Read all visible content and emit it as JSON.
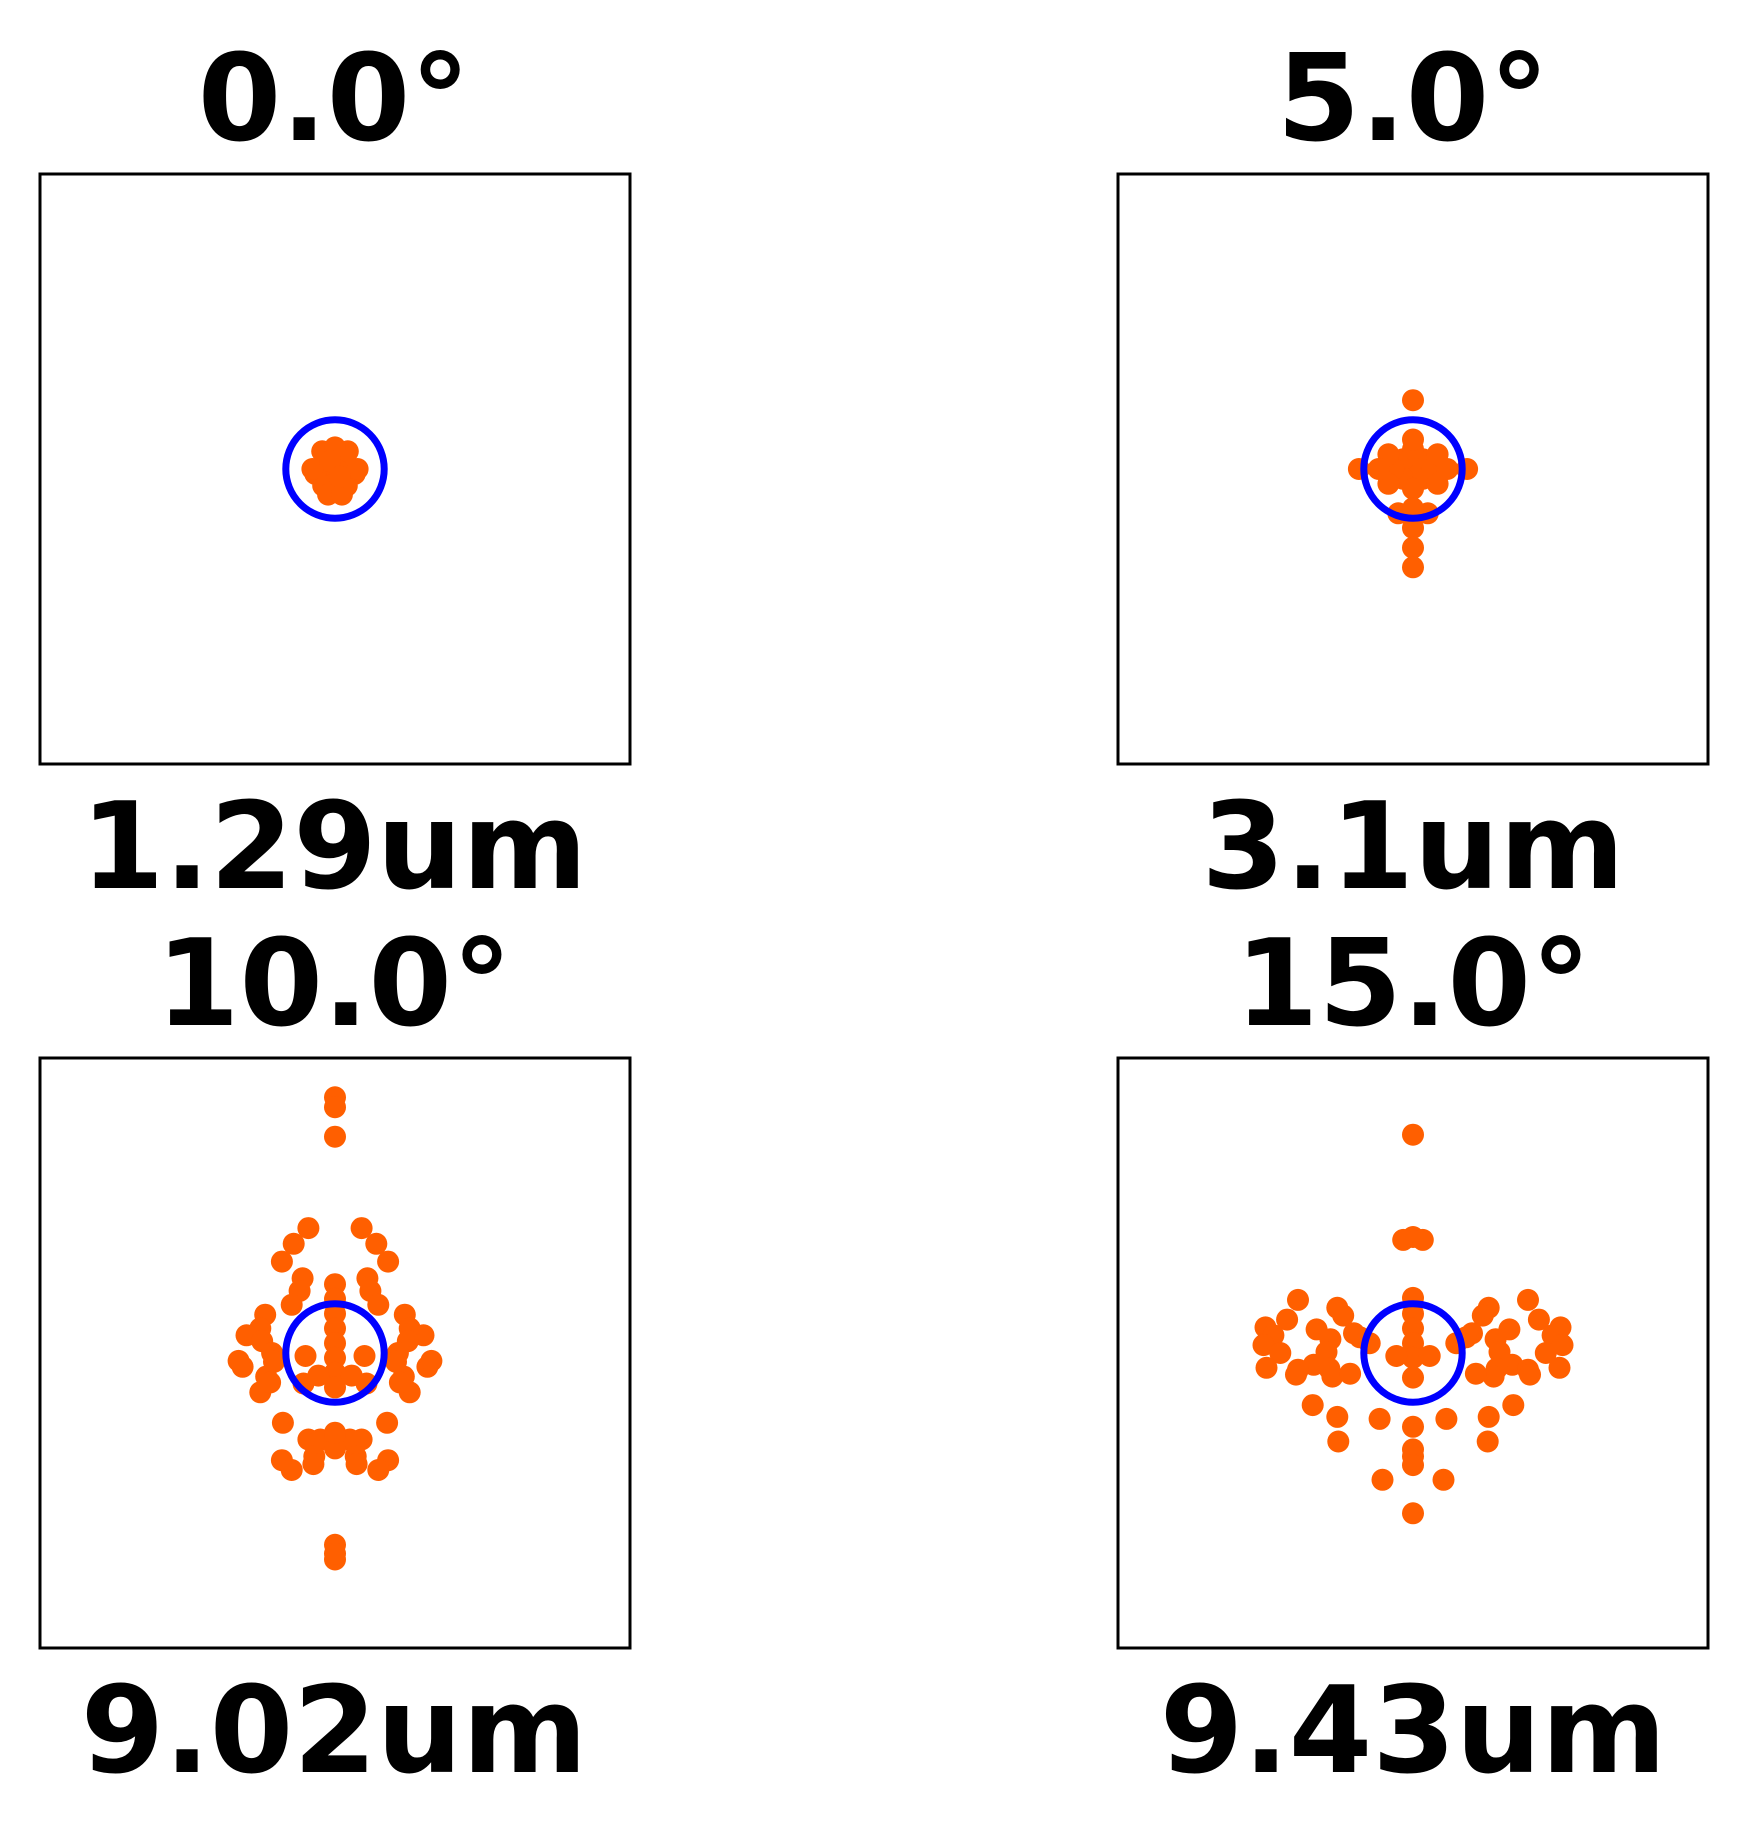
{
  "chart_data": [
    {
      "type": "scatter",
      "title": "0.0°",
      "rms_label": "1.29um",
      "xlim": [
        -30,
        30
      ],
      "ylim": [
        -30,
        30
      ],
      "airy_radius": 5,
      "marker_color": "#FF5F00",
      "circle_color": "#0000FF",
      "points": [
        [
          0,
          0
        ],
        [
          -1.2,
          0.4
        ],
        [
          1.2,
          0.4
        ],
        [
          0,
          1.5
        ],
        [
          0,
          -1.5
        ],
        [
          -2,
          -0.5
        ],
        [
          2,
          -0.5
        ],
        [
          -1.3,
          1.8
        ],
        [
          1.3,
          1.8
        ],
        [
          -1.2,
          -1.7
        ],
        [
          1.2,
          -1.7
        ],
        [
          -2.3,
          0
        ],
        [
          2.3,
          0
        ],
        [
          0,
          2.2
        ],
        [
          0,
          -2.2
        ],
        [
          -0.7,
          -2.6
        ],
        [
          0.7,
          -2.6
        ],
        [
          -0.5,
          0.8
        ],
        [
          0.5,
          -0.8
        ]
      ]
    },
    {
      "type": "scatter",
      "title": "5.0°",
      "rms_label": "3.1um",
      "xlim": [
        -30,
        30
      ],
      "ylim": [
        -30,
        30
      ],
      "airy_radius": 5,
      "marker_color": "#FF5F00",
      "circle_color": "#0000FF",
      "points": [
        [
          0,
          0
        ],
        [
          -1,
          1
        ],
        [
          1,
          1
        ],
        [
          -1,
          -1
        ],
        [
          1,
          -1
        ],
        [
          0,
          2
        ],
        [
          0,
          -2
        ],
        [
          -2,
          0
        ],
        [
          2,
          0
        ],
        [
          -2.5,
          1.5
        ],
        [
          2.5,
          1.5
        ],
        [
          -2.5,
          -1.5
        ],
        [
          2.5,
          -1.5
        ],
        [
          0,
          3
        ],
        [
          -3.5,
          0
        ],
        [
          3.5,
          0
        ],
        [
          -5.5,
          0
        ],
        [
          5.5,
          0
        ],
        [
          -1.5,
          -4.5
        ],
        [
          1.5,
          -4.5
        ],
        [
          0,
          -4
        ],
        [
          0,
          7
        ],
        [
          0,
          -6
        ],
        [
          0,
          -8
        ],
        [
          0,
          -10
        ]
      ]
    },
    {
      "type": "scatter",
      "title": "10.0°",
      "rms_label": "9.02um",
      "xlim": [
        -30,
        30
      ],
      "ylim": [
        -30,
        30
      ],
      "airy_radius": 5,
      "marker_color": "#FF5F00",
      "circle_color": "#0000FF",
      "points": [
        [
          0,
          26
        ],
        [
          0,
          25
        ],
        [
          0,
          22
        ],
        [
          -2.7,
          12.7
        ],
        [
          2.7,
          12.7
        ],
        [
          -4.2,
          11.1
        ],
        [
          4.2,
          11.1
        ],
        [
          -5.4,
          9.3
        ],
        [
          5.4,
          9.3
        ],
        [
          -3.3,
          7.6
        ],
        [
          3.3,
          7.6
        ],
        [
          -3.6,
          6.3
        ],
        [
          3.6,
          6.3
        ],
        [
          -4.4,
          4.9
        ],
        [
          4.4,
          4.9
        ],
        [
          -7.1,
          3.9
        ],
        [
          7.1,
          3.9
        ],
        [
          -7.6,
          2.5
        ],
        [
          7.6,
          2.5
        ],
        [
          -9,
          1.8
        ],
        [
          9,
          1.8
        ],
        [
          -9.4,
          -1.4
        ],
        [
          9.4,
          -1.4
        ],
        [
          -9.8,
          -0.8
        ],
        [
          9.8,
          -0.8
        ],
        [
          -7,
          -2.4
        ],
        [
          7,
          -2.4
        ],
        [
          -7.6,
          -4
        ],
        [
          7.6,
          -4
        ],
        [
          -6.6,
          -3
        ],
        [
          6.6,
          -3
        ],
        [
          -7.4,
          1.2
        ],
        [
          7.4,
          1.2
        ],
        [
          -6.4,
          0
        ],
        [
          6.4,
          0
        ],
        [
          -3,
          -0.3
        ],
        [
          3,
          -0.3
        ],
        [
          -3.2,
          -3.1
        ],
        [
          3.2,
          -3.1
        ],
        [
          -6.2,
          -0.9
        ],
        [
          6.2,
          -0.9
        ],
        [
          -5.3,
          -7.1
        ],
        [
          5.3,
          -7.1
        ],
        [
          0,
          7
        ],
        [
          0,
          5.5
        ],
        [
          0,
          4
        ],
        [
          0,
          2.5
        ],
        [
          0,
          1
        ],
        [
          0,
          -0.5
        ],
        [
          0,
          -2
        ],
        [
          0,
          -3.5
        ],
        [
          -1.7,
          -2.3
        ],
        [
          1.7,
          -2.3
        ],
        [
          -2.7,
          -8.8
        ],
        [
          2.7,
          -8.8
        ],
        [
          -2,
          -9.2
        ],
        [
          2,
          -9.2
        ],
        [
          -1.5,
          -8.8
        ],
        [
          1.5,
          -8.8
        ],
        [
          0,
          -8.4
        ],
        [
          0,
          -9.7
        ],
        [
          0,
          -8.1
        ],
        [
          -2.1,
          -10.5
        ],
        [
          2.1,
          -10.5
        ],
        [
          -5.4,
          -10.9
        ],
        [
          5.4,
          -10.9
        ],
        [
          -4.4,
          -11.9
        ],
        [
          4.4,
          -11.9
        ],
        [
          -2.2,
          -11.3
        ],
        [
          2.2,
          -11.3
        ],
        [
          0,
          -19.5
        ],
        [
          0,
          -21
        ],
        [
          0,
          -20.4
        ]
      ]
    },
    {
      "type": "scatter",
      "title": "15.0°",
      "rms_label": "9.43um",
      "xlim": [
        -30,
        30
      ],
      "ylim": [
        -30,
        30
      ],
      "airy_radius": 5,
      "marker_color": "#FF5F00",
      "circle_color": "#0000FF",
      "points": [
        [
          0,
          22.2
        ],
        [
          0,
          11.8
        ],
        [
          -1,
          11.5
        ],
        [
          1,
          11.5
        ],
        [
          0,
          5.6
        ],
        [
          0,
          4
        ],
        [
          0,
          2.5
        ],
        [
          0,
          1
        ],
        [
          0,
          -0.5
        ],
        [
          0,
          -2.5
        ],
        [
          -1.7,
          -0.3
        ],
        [
          1.7,
          -0.3
        ],
        [
          -11.7,
          5.4
        ],
        [
          11.7,
          5.4
        ],
        [
          -7.7,
          4.6
        ],
        [
          7.7,
          4.6
        ],
        [
          -7.1,
          3.8
        ],
        [
          7.1,
          3.8
        ],
        [
          -12.8,
          3.4
        ],
        [
          12.8,
          3.4
        ],
        [
          -15,
          2.6
        ],
        [
          15,
          2.6
        ],
        [
          -14.2,
          1.8
        ],
        [
          14.2,
          1.8
        ],
        [
          -9.8,
          2.4
        ],
        [
          9.8,
          2.4
        ],
        [
          -8.4,
          1.4
        ],
        [
          8.4,
          1.4
        ],
        [
          -6,
          2
        ],
        [
          6,
          2
        ],
        [
          -5.4,
          1.6
        ],
        [
          5.4,
          1.6
        ],
        [
          -4.4,
          1
        ],
        [
          4.4,
          1
        ],
        [
          -15.2,
          0.8
        ],
        [
          15.2,
          0.8
        ],
        [
          -13.5,
          0
        ],
        [
          13.5,
          0
        ],
        [
          -8.8,
          0.1
        ],
        [
          8.8,
          0.1
        ],
        [
          -10.1,
          -1.2
        ],
        [
          10.1,
          -1.2
        ],
        [
          -8.5,
          -1.6
        ],
        [
          8.5,
          -1.6
        ],
        [
          -14.9,
          -1.5
        ],
        [
          14.9,
          -1.5
        ],
        [
          -11.7,
          -1.7
        ],
        [
          11.7,
          -1.7
        ],
        [
          -8.2,
          -2.4
        ],
        [
          8.2,
          -2.4
        ],
        [
          -6.4,
          -2.1
        ],
        [
          6.4,
          -2.1
        ],
        [
          -11.9,
          -2.2
        ],
        [
          11.9,
          -2.2
        ],
        [
          -10.2,
          -5.3
        ],
        [
          10.2,
          -5.3
        ],
        [
          -7.7,
          -6.5
        ],
        [
          7.7,
          -6.5
        ],
        [
          -3.4,
          -6.7
        ],
        [
          3.4,
          -6.7
        ],
        [
          0,
          -7.5
        ],
        [
          0,
          -9.8
        ],
        [
          0,
          -10.5
        ],
        [
          0,
          -11.4
        ],
        [
          -7.6,
          -9
        ],
        [
          7.6,
          -9
        ],
        [
          -3.1,
          -12.9
        ],
        [
          3.1,
          -12.9
        ],
        [
          0,
          -16.3
        ]
      ]
    }
  ]
}
